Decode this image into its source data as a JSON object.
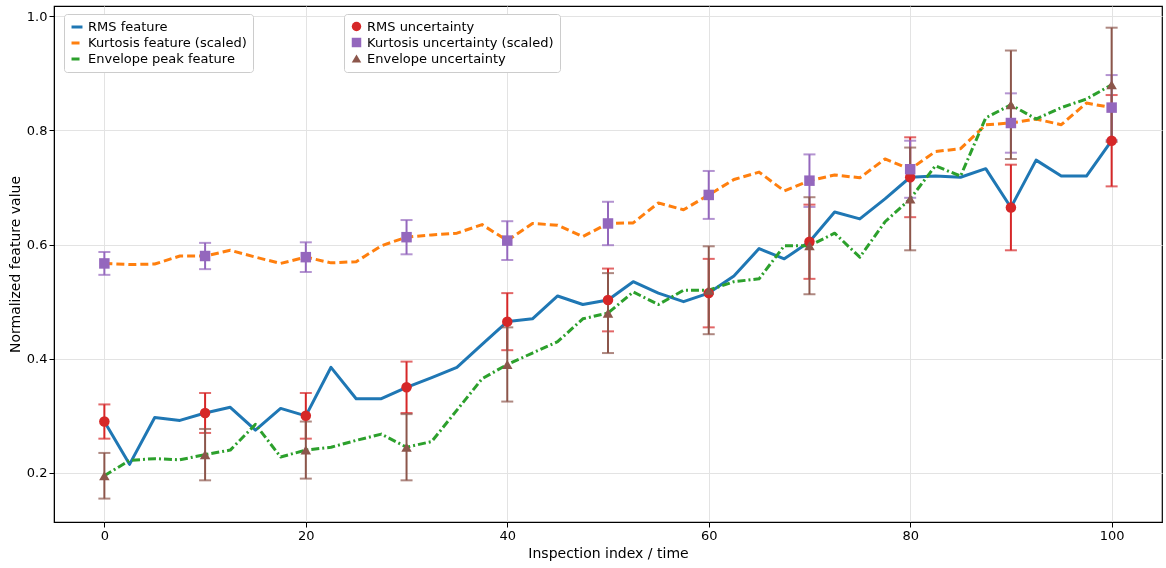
{
  "chart_data": {
    "type": "line",
    "xlabel": "Inspection index / time",
    "ylabel": "Normalized feature value",
    "xlim": [
      -5,
      105
    ],
    "ylim": [
      0.114,
      1.018
    ],
    "xticks": [
      0,
      20,
      40,
      60,
      80,
      100
    ],
    "yticks": [
      0.2,
      0.4,
      0.6,
      0.8,
      {
        "value": 1.0,
        "label": "1.0"
      }
    ],
    "grid": true,
    "legend": "top left",
    "x": [
      0,
      2.5,
      5,
      7.5,
      10,
      12.5,
      15,
      17.5,
      20,
      22.5,
      25,
      27.5,
      30,
      32.5,
      35,
      37.5,
      40,
      42.5,
      45,
      47.5,
      50,
      52.5,
      55,
      57.5,
      60,
      62.5,
      65,
      67.5,
      70,
      72.5,
      75,
      77.5,
      80,
      82.5,
      85,
      87.5,
      90,
      92.5,
      95,
      97.5,
      100
    ],
    "series": [
      {
        "name": "RMS feature",
        "color": "#1f77b4",
        "line_style": "solid",
        "marker": "none",
        "values": [
          0.29,
          0.215,
          0.297,
          0.292,
          0.305,
          0.315,
          0.275,
          0.313,
          0.3,
          0.385,
          0.33,
          0.33,
          0.35,
          0.367,
          0.385,
          0.425,
          0.465,
          0.47,
          0.51,
          0.495,
          0.503,
          0.535,
          0.515,
          0.5,
          0.515,
          0.545,
          0.593,
          0.575,
          0.605,
          0.657,
          0.645,
          0.68,
          0.718,
          0.72,
          0.718,
          0.733,
          0.665,
          0.748,
          0.72,
          0.72,
          0.782
        ]
      },
      {
        "name": "Kurtosis feature (scaled)",
        "color": "#ff7f0e",
        "line_style": "dashed",
        "marker": "none",
        "values": [
          0.567,
          0.565,
          0.566,
          0.58,
          0.58,
          0.59,
          0.578,
          0.567,
          0.578,
          0.568,
          0.57,
          0.598,
          0.613,
          0.617,
          0.62,
          0.635,
          0.607,
          0.637,
          0.634,
          0.614,
          0.637,
          0.638,
          0.673,
          0.661,
          0.687,
          0.714,
          0.727,
          0.694,
          0.712,
          0.722,
          0.717,
          0.75,
          0.732,
          0.763,
          0.768,
          0.81,
          0.813,
          0.82,
          0.81,
          0.848,
          0.84
        ]
      },
      {
        "name": "Envelope peak feature",
        "color": "#2ca02c",
        "line_style": "dashdot",
        "marker": "none",
        "values": [
          0.195,
          0.222,
          0.225,
          0.223,
          0.232,
          0.24,
          0.285,
          0.228,
          0.24,
          0.245,
          0.257,
          0.268,
          0.245,
          0.255,
          0.31,
          0.365,
          0.39,
          0.41,
          0.43,
          0.47,
          0.48,
          0.517,
          0.495,
          0.52,
          0.52,
          0.535,
          0.54,
          0.598,
          0.598,
          0.62,
          0.578,
          0.64,
          0.68,
          0.738,
          0.72,
          0.822,
          0.845,
          0.82,
          0.84,
          0.855,
          0.88
        ]
      },
      {
        "name": "RMS uncertainty",
        "type": "scatter",
        "color": "#d62728",
        "marker": "circle",
        "x": [
          0,
          10,
          20,
          30,
          40,
          50,
          60,
          70,
          80,
          90,
          100
        ],
        "values": [
          0.29,
          0.305,
          0.3,
          0.35,
          0.465,
          0.503,
          0.515,
          0.605,
          0.718,
          0.665,
          0.782
        ],
        "errors": [
          0.03,
          0.035,
          0.04,
          0.045,
          0.05,
          0.055,
          0.06,
          0.065,
          0.07,
          0.075,
          0.08
        ]
      },
      {
        "name": "Kurtosis uncertainty (scaled)",
        "type": "scatter",
        "color": "#9467bd",
        "marker": "square",
        "x": [
          0,
          10,
          20,
          30,
          40,
          50,
          60,
          70,
          80,
          90,
          100
        ],
        "values": [
          0.567,
          0.58,
          0.578,
          0.613,
          0.607,
          0.637,
          0.687,
          0.712,
          0.732,
          0.813,
          0.84
        ],
        "errors": [
          0.02,
          0.023,
          0.026,
          0.03,
          0.034,
          0.038,
          0.042,
          0.046,
          0.05,
          0.052,
          0.057
        ]
      },
      {
        "name": "Envelope uncertainty",
        "type": "scatter",
        "color": "#8c564b",
        "marker": "triangle",
        "x": [
          0,
          10,
          20,
          30,
          40,
          50,
          60,
          70,
          80,
          90,
          100
        ],
        "values": [
          0.195,
          0.232,
          0.24,
          0.245,
          0.39,
          0.48,
          0.52,
          0.598,
          0.68,
          0.845,
          0.88
        ],
        "errors": [
          0.04,
          0.045,
          0.05,
          0.058,
          0.065,
          0.07,
          0.077,
          0.085,
          0.09,
          0.095,
          0.1
        ]
      }
    ]
  }
}
